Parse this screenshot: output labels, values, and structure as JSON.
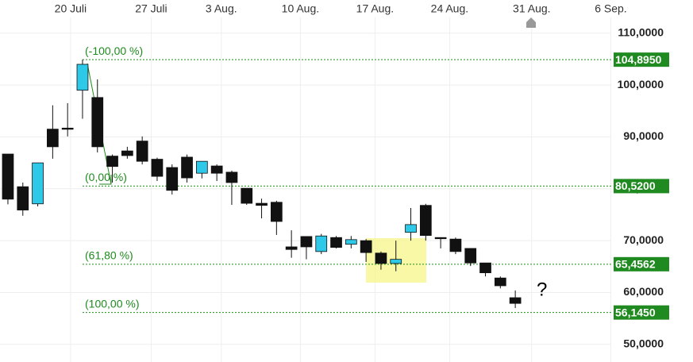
{
  "chart_data": {
    "type": "candlestick",
    "x": [
      0,
      1,
      2,
      3,
      4,
      5,
      6,
      7,
      8,
      9,
      10,
      11,
      12,
      13,
      14,
      15,
      16,
      17,
      18,
      19,
      20,
      21,
      22,
      23,
      24,
      25,
      26,
      27,
      28,
      29,
      30,
      31,
      32,
      33,
      34
    ],
    "open": [
      86.7,
      80.4,
      77.1,
      91.5,
      91.7,
      99.0,
      97.6,
      86.3,
      87.3,
      89.2,
      85.7,
      84.1,
      86.1,
      83.0,
      84.4,
      83.2,
      80.1,
      77.2,
      77.4,
      68.8,
      70.8,
      67.9,
      70.6,
      69.3,
      70.0,
      67.6,
      65.6,
      71.6,
      76.8,
      70.6,
      70.3,
      68.5,
      65.7,
      62.8,
      59.0
    ],
    "high": [
      86.7,
      81.2,
      85.0,
      96.1,
      96.5,
      104.9,
      101.1,
      86.6,
      88.1,
      90.1,
      86.0,
      84.7,
      86.6,
      85.3,
      84.7,
      83.5,
      80.1,
      78.1,
      77.7,
      72.0,
      70.8,
      71.3,
      70.9,
      70.9,
      70.3,
      67.9,
      70.0,
      76.3,
      77.1,
      70.6,
      70.6,
      68.5,
      65.7,
      63.1,
      60.4
    ],
    "low": [
      77.0,
      74.8,
      76.6,
      85.8,
      90.1,
      93.5,
      87.0,
      81.2,
      85.8,
      84.7,
      81.5,
      78.9,
      81.2,
      82.0,
      81.5,
      76.9,
      76.9,
      74.3,
      71.1,
      66.7,
      66.4,
      67.4,
      68.5,
      68.5,
      65.9,
      64.4,
      64.1,
      70.0,
      70.0,
      68.5,
      67.4,
      65.1,
      63.1,
      60.8,
      57.0
    ],
    "close": [
      78.0,
      75.9,
      85.0,
      88.1,
      91.5,
      104.0,
      88.1,
      84.3,
      86.4,
      85.3,
      82.4,
      79.7,
      82.1,
      85.3,
      83.0,
      81.2,
      77.2,
      76.8,
      73.7,
      68.3,
      68.8,
      70.9,
      68.7,
      70.2,
      67.7,
      65.6,
      66.4,
      73.1,
      71.0,
      70.5,
      67.9,
      65.7,
      63.8,
      61.3,
      57.9
    ],
    "up_color": "#2ec8e8",
    "down_color": "#111111",
    "xlim": [
      -0.53,
      40.43
    ],
    "xticks": [
      {
        "value": 4.2,
        "label": "20 Juli"
      },
      {
        "value": 9.6,
        "label": "27 Juli"
      },
      {
        "value": 14.3,
        "label": "3 Aug."
      },
      {
        "value": 19.6,
        "label": "10 Aug."
      },
      {
        "value": 24.6,
        "label": "17 Aug."
      },
      {
        "value": 29.6,
        "label": "24 Aug."
      },
      {
        "value": 35.1,
        "label": "31 Aug."
      },
      {
        "value": 40.4,
        "label": "6 Sep."
      }
    ],
    "ylim": [
      46.6,
      116.4
    ],
    "yticks": [
      {
        "value": 50,
        "label": "50,0000"
      },
      {
        "value": 60,
        "label": "60,0000"
      },
      {
        "value": 70,
        "label": "70,0000"
      },
      {
        "value": 80,
        "label": "80,0000"
      },
      {
        "value": 90,
        "label": "90,0000"
      },
      {
        "value": 100,
        "label": "100,0000"
      },
      {
        "value": 110,
        "label": "110,0000"
      }
    ],
    "grid": true,
    "levels": [
      {
        "value": 104.895,
        "label": "104,8950",
        "fib": "(-100,00 %)"
      },
      {
        "value": 80.52,
        "label": "80,5200",
        "fib": "(0,00 %)"
      },
      {
        "value": 65.4562,
        "label": "65,4562",
        "fib": "(61,80 %)"
      },
      {
        "value": 56.145,
        "label": "56,1450",
        "fib": "(100,00 %)"
      }
    ],
    "level_color": "#1f8a1f",
    "annotation": "?"
  }
}
